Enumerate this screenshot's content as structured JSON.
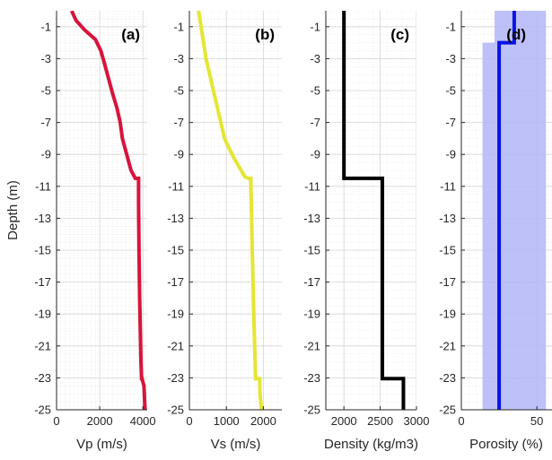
{
  "chart_data": [
    {
      "type": "line",
      "panel_label": "(a)",
      "xlabel": "Vp (m/s)",
      "ylabel": "Depth (m)",
      "xlim": [
        0,
        4200
      ],
      "ylim": [
        -25,
        0
      ],
      "xticks": [
        0,
        2000,
        4000
      ],
      "xtick_labels": [
        "0",
        "2000",
        "4000"
      ],
      "yticks": [
        -1,
        -3,
        -5,
        -7,
        -9,
        -11,
        -13,
        -15,
        -17,
        -19,
        -21,
        -23,
        -25
      ],
      "ytick_labels": [
        "-1",
        "-3",
        "-5",
        "-7",
        "-9",
        "-11",
        "-13",
        "-15",
        "-17",
        "-19",
        "-21",
        "-23",
        "-25"
      ],
      "grid": true,
      "color": "#d7143c",
      "series": [
        {
          "x": [
            700,
            900,
            1300,
            1800,
            2050,
            2200,
            2400,
            2600,
            2800,
            2950,
            3050,
            3250,
            3450,
            3650,
            3800,
            3800,
            3820,
            3850,
            3880,
            3910,
            3940,
            3960,
            4050,
            4100
          ],
          "y": [
            0,
            -0.6,
            -1.2,
            -1.8,
            -2.5,
            -3.2,
            -4.2,
            -5.2,
            -6.1,
            -7.0,
            -8.0,
            -9.0,
            -10.0,
            -10.5,
            -10.5,
            -12,
            -15,
            -18,
            -20,
            -22,
            -23.05,
            -23.05,
            -23.5,
            -25
          ]
        }
      ]
    },
    {
      "type": "line",
      "panel_label": "(b)",
      "xlabel": "Vs (m/s)",
      "ylabel": "",
      "xlim": [
        0,
        2500
      ],
      "ylim": [
        -25,
        0
      ],
      "xticks": [
        0,
        1000,
        2000
      ],
      "xtick_labels": [
        "0",
        "1000",
        "2000"
      ],
      "yticks": [
        -1,
        -3,
        -5,
        -7,
        -9,
        -11,
        -13,
        -15,
        -17,
        -19,
        -21,
        -23,
        -25
      ],
      "ytick_labels": [
        "-1",
        "-3",
        "-5",
        "-7",
        "-9",
        "-11",
        "-13",
        "-15",
        "-17",
        "-19",
        "-21",
        "-23",
        "-25"
      ],
      "grid": true,
      "color": "#e4e633",
      "series": [
        {
          "x": [
            250,
            350,
            450,
            550,
            650,
            750,
            850,
            950,
            1050,
            1200,
            1350,
            1500,
            1600,
            1650,
            1660,
            1700,
            1740,
            1790,
            1900,
            1910,
            1930,
            1950
          ],
          "y": [
            0,
            -1.5,
            -3,
            -4,
            -5,
            -6,
            -7,
            -8,
            -8.5,
            -9.2,
            -9.8,
            -10.4,
            -10.5,
            -10.5,
            -10.5,
            -15,
            -19,
            -23.05,
            -23.05,
            -24,
            -24.5,
            -25
          ]
        }
      ]
    },
    {
      "type": "line",
      "panel_label": "(c)",
      "xlabel": "Density (kg/m3)",
      "ylabel": "",
      "xlim": [
        1750,
        3000
      ],
      "ylim": [
        -25,
        0
      ],
      "xticks": [
        2000,
        2500,
        3000
      ],
      "xtick_labels": [
        "2000",
        "2500",
        "3000"
      ],
      "yticks": [
        -1,
        -3,
        -5,
        -7,
        -9,
        -11,
        -13,
        -15,
        -17,
        -19,
        -21,
        -23,
        -25
      ],
      "ytick_labels": [
        "-1",
        "-3",
        "-5",
        "-7",
        "-9",
        "-11",
        "-13",
        "-15",
        "-17",
        "-19",
        "-21",
        "-23",
        "-25"
      ],
      "grid": true,
      "color": "#000000",
      "series": [
        {
          "x": [
            2000,
            2000,
            2530,
            2530,
            2820,
            2820
          ],
          "y": [
            0,
            -10.5,
            -10.5,
            -23.05,
            -23.05,
            -25
          ]
        }
      ]
    },
    {
      "type": "line",
      "panel_label": "(d)",
      "xlabel": "Porosity (%)",
      "ylabel": "",
      "xlim": [
        0,
        60
      ],
      "ylim": [
        -25,
        0
      ],
      "xticks": [
        0,
        50
      ],
      "xtick_labels": [
        "0",
        "50"
      ],
      "yticks": [
        -1,
        -3,
        -5,
        -7,
        -9,
        -11,
        -13,
        -15,
        -17,
        -19,
        -21,
        -23,
        -25
      ],
      "ytick_labels": [
        "-1",
        "-3",
        "-5",
        "-7",
        "-9",
        "-11",
        "-13",
        "-15",
        "-17",
        "-19",
        "-21",
        "-23",
        "-25"
      ],
      "grid": true,
      "color": "#0a14e6",
      "band_color": "#b3b6f7",
      "series": [
        {
          "x": [
            35,
            35,
            30,
            30,
            25,
            25
          ],
          "y": [
            0,
            -2,
            -2,
            -2,
            -2,
            -25
          ]
        }
      ],
      "band": {
        "y": [
          0,
          -2,
          -2,
          -25
        ],
        "lower": [
          22,
          22,
          14,
          14
        ],
        "upper": [
          56,
          56,
          56,
          56
        ]
      }
    }
  ]
}
